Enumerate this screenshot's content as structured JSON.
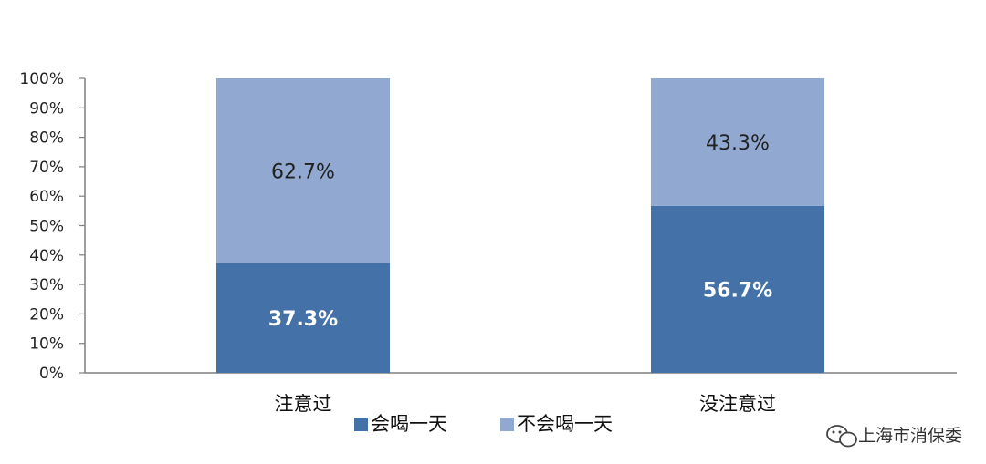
{
  "chart_data": {
    "type": "bar",
    "stacked": true,
    "categories": [
      "注意过",
      "没注意过"
    ],
    "series": [
      {
        "name": "会喝一天",
        "values": [
          37.3,
          56.7
        ],
        "color": "#4472a8",
        "label_color": "#ffffff"
      },
      {
        "name": "不会喝一天",
        "values": [
          62.7,
          43.3
        ],
        "color": "#91a9d0",
        "label_color": "#222222"
      }
    ],
    "data_labels": [
      [
        "37.3%",
        "56.7%"
      ],
      [
        "62.7%",
        "43.3%"
      ]
    ],
    "yticks": [
      "0%",
      "10%",
      "20%",
      "30%",
      "40%",
      "50%",
      "60%",
      "70%",
      "80%",
      "90%",
      "100%"
    ],
    "ylim": [
      0,
      100
    ],
    "grid": false,
    "legend_position": "bottom"
  },
  "watermark": {
    "text": "上海市消保委",
    "icon": "wechat-icon"
  }
}
